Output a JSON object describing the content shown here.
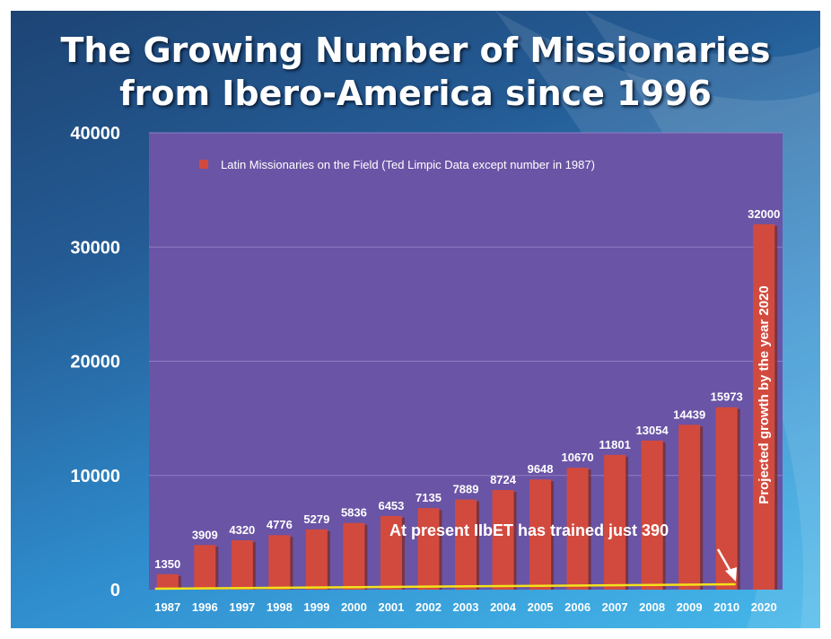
{
  "title_line1": "The Growing Number of Missionaries",
  "title_line2": "from Ibero-America since  1996",
  "colors": {
    "plot_bg": "#6a54a6",
    "bar": "#d24a3e",
    "bar_shadow": "#7a2820",
    "trend_line": "#f2e21a",
    "text": "#ffffff"
  },
  "chart_data": {
    "type": "bar",
    "title": "The Growing Number of Missionaries from Ibero-America since  1996",
    "xlabel": "",
    "ylabel": "",
    "ylim": [
      0,
      40000
    ],
    "yticks": [
      0,
      10000,
      20000,
      30000,
      40000
    ],
    "categories": [
      "1987",
      "1996",
      "1997",
      "1998",
      "1999",
      "2000",
      "2001",
      "2002",
      "2003",
      "2004",
      "2005",
      "2006",
      "2007",
      "2008",
      "2009",
      "2010",
      "2020"
    ],
    "series": [
      {
        "name": "Latin Missionaries on the Field (Ted Limpic Data except number in 1987)",
        "values": [
          1350,
          3909,
          4320,
          4776,
          5279,
          5836,
          6453,
          7135,
          7889,
          8724,
          9648,
          10670,
          11801,
          13054,
          14439,
          15973,
          32000
        ]
      }
    ],
    "data_labels": [
      "1350",
      "3909",
      "4320",
      "4776",
      "5279",
      "5836",
      "6453",
      "7135",
      "7889",
      "8724",
      "9648",
      "10670",
      "11801",
      "13054",
      "14439",
      "15973",
      "32000"
    ],
    "trend_line": {
      "description": "IIbET trained",
      "start_value": 0,
      "end_value": 390
    },
    "legend": "top-left",
    "grid": true,
    "annotations": {
      "horizontal": "At present IIbET has trained just 390",
      "vertical": "Projected growth by the year 2020"
    }
  }
}
